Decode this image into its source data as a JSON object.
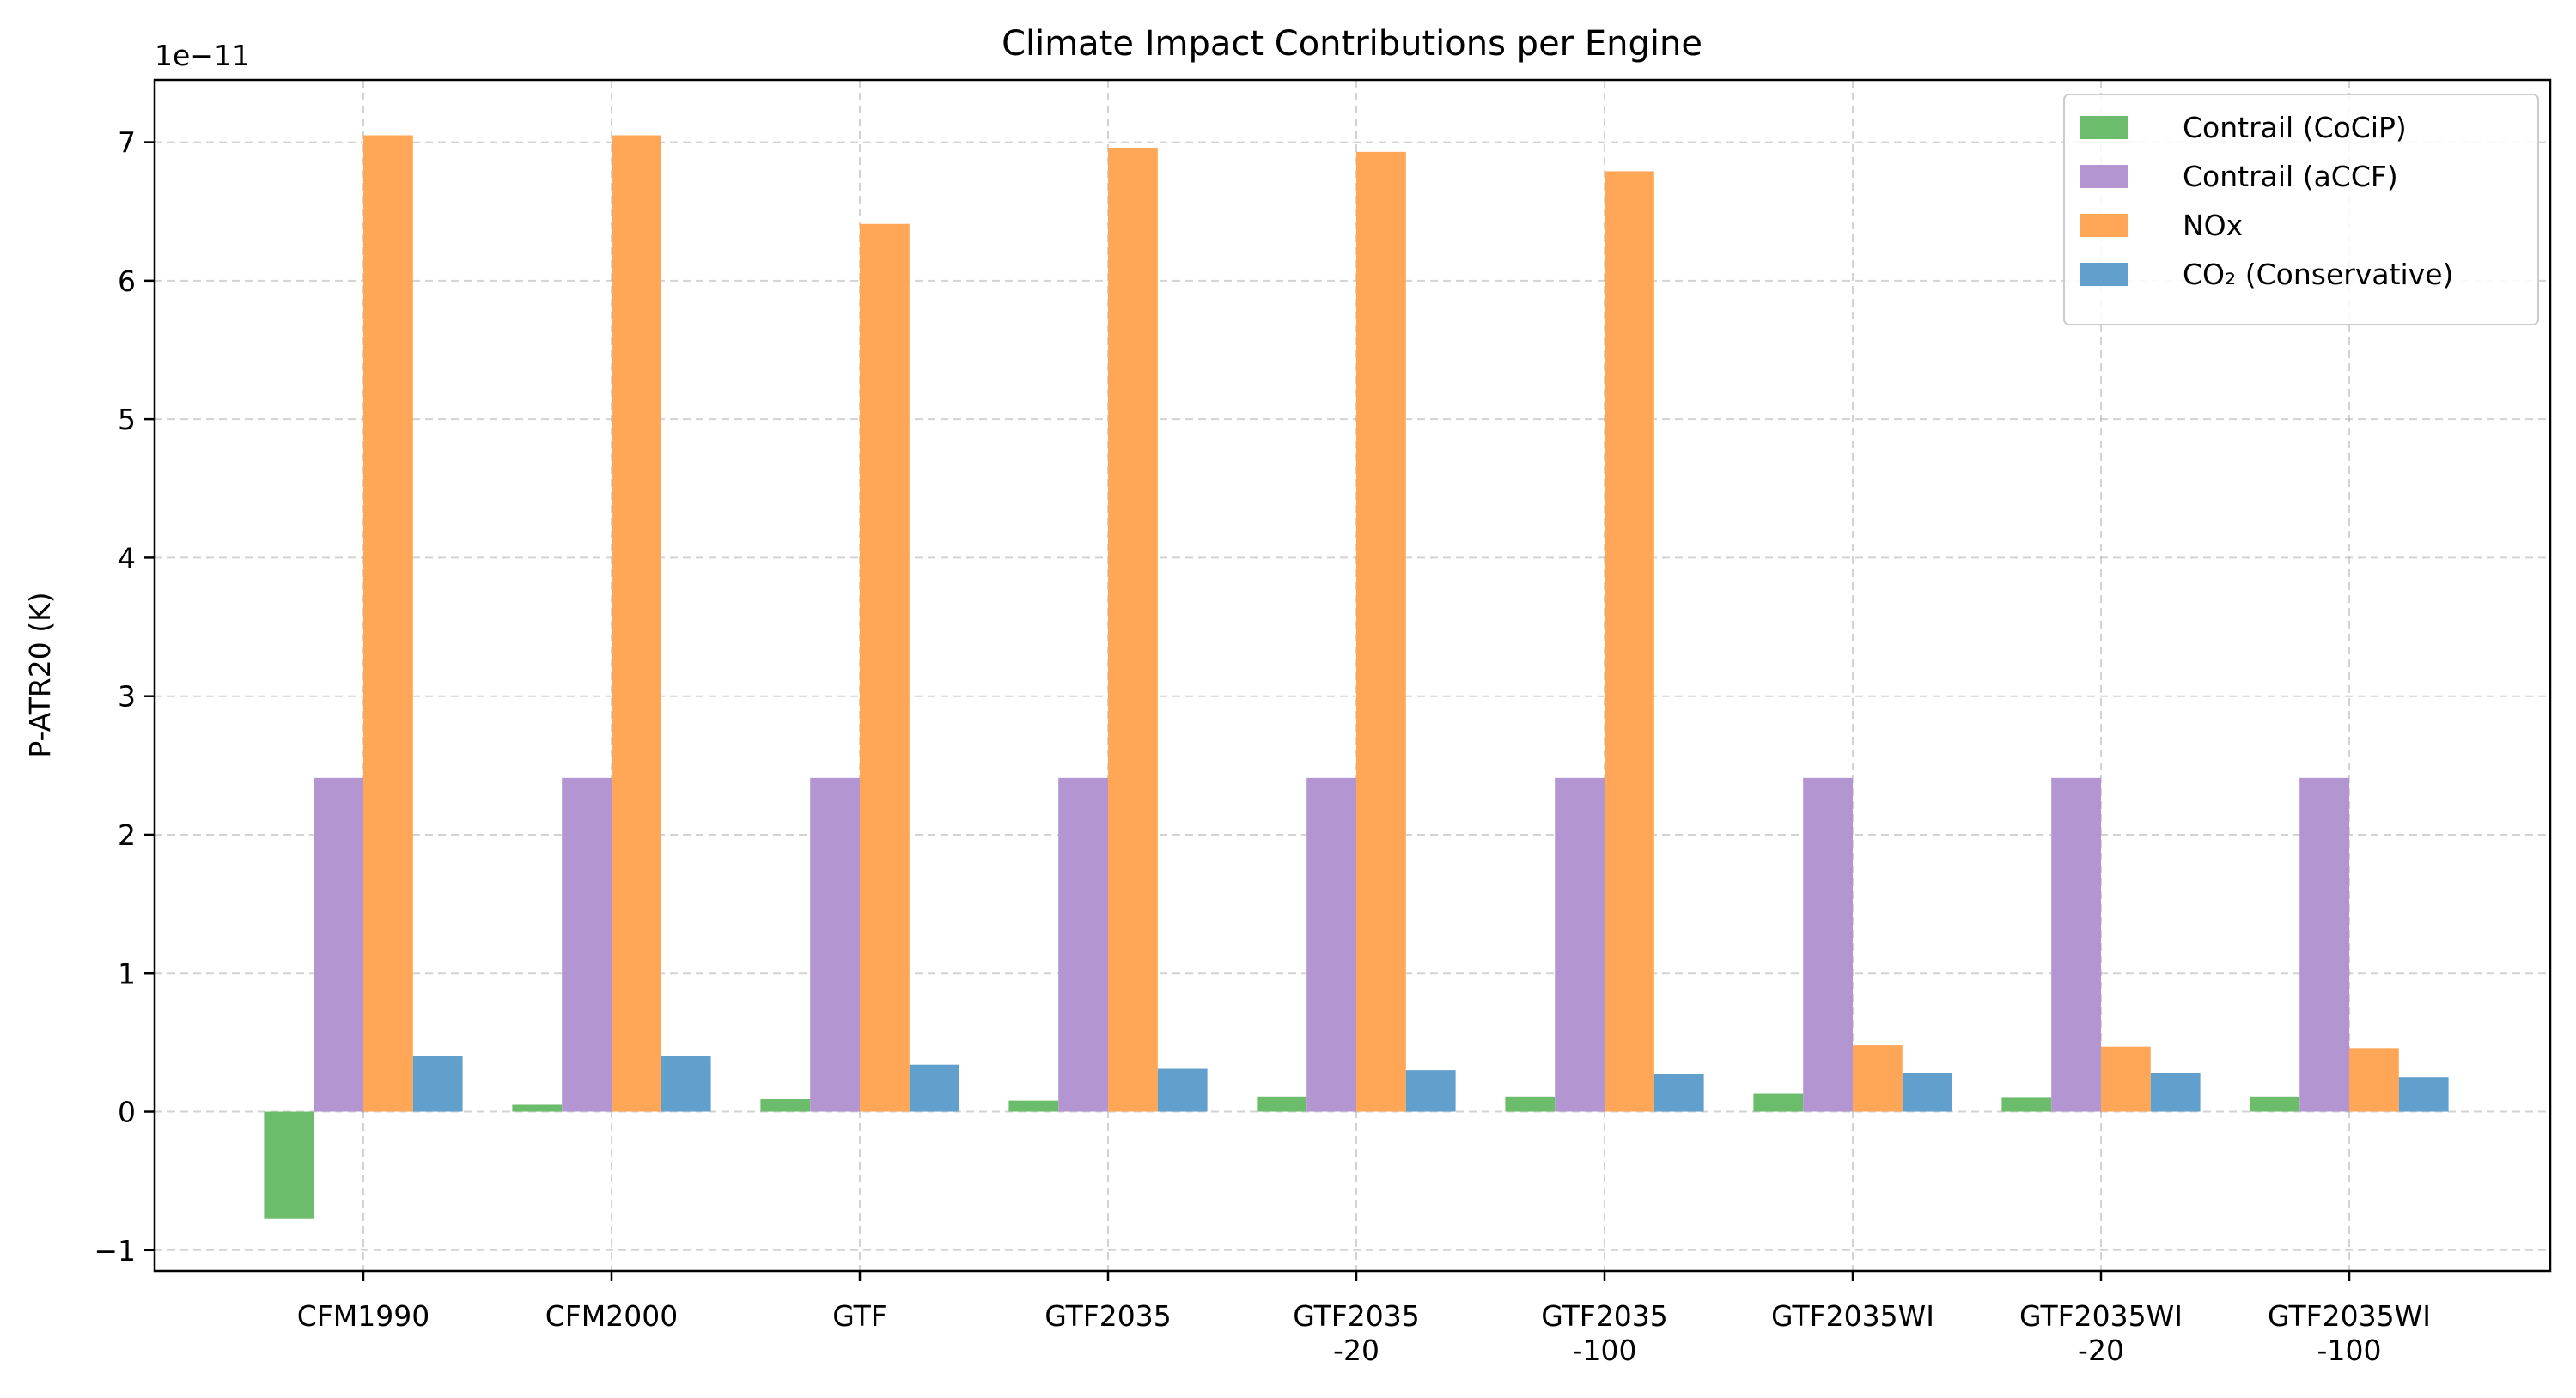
{
  "chart_data": {
    "type": "bar",
    "title": "Climate Impact Contributions per Engine",
    "ylabel": "P-ATR20 (K)",
    "xlabel": "",
    "y_offset_label": "1e−11",
    "y_multiplier": 1e-11,
    "ylim": [
      -1.15,
      7.45
    ],
    "yticks": [
      -1,
      0,
      1,
      2,
      3,
      4,
      5,
      6,
      7
    ],
    "ytick_labels": [
      "−1",
      "0",
      "1",
      "2",
      "3",
      "4",
      "5",
      "6",
      "7"
    ],
    "grid": true,
    "legend_position": "top-right",
    "categories": [
      [
        "CFM1990"
      ],
      [
        "CFM2000"
      ],
      [
        "GTF"
      ],
      [
        "GTF2035"
      ],
      [
        "GTF2035",
        "-20"
      ],
      [
        "GTF2035",
        "-100"
      ],
      [
        "GTF2035WI"
      ],
      [
        "GTF2035WI",
        "-20"
      ],
      [
        "GTF2035WI",
        "-100"
      ]
    ],
    "series": [
      {
        "name": "Contrail (CoCiP)",
        "color": "#6bbd6b",
        "values": [
          -0.77,
          0.05,
          0.09,
          0.08,
          0.11,
          0.11,
          0.13,
          0.1,
          0.11
        ]
      },
      {
        "name": "Contrail (aCCF)",
        "color": "#b396d1",
        "values": [
          2.41,
          2.41,
          2.41,
          2.41,
          2.41,
          2.41,
          2.41,
          2.41,
          2.41
        ]
      },
      {
        "name": "NOx",
        "color": "#ffa657",
        "values": [
          7.05,
          7.05,
          6.41,
          6.96,
          6.93,
          6.79,
          0.48,
          0.47,
          0.46
        ]
      },
      {
        "name": "CO₂ (Conservative)",
        "color": "#619fcc",
        "values": [
          0.4,
          0.4,
          0.34,
          0.31,
          0.3,
          0.27,
          0.28,
          0.28,
          0.25
        ]
      }
    ]
  }
}
